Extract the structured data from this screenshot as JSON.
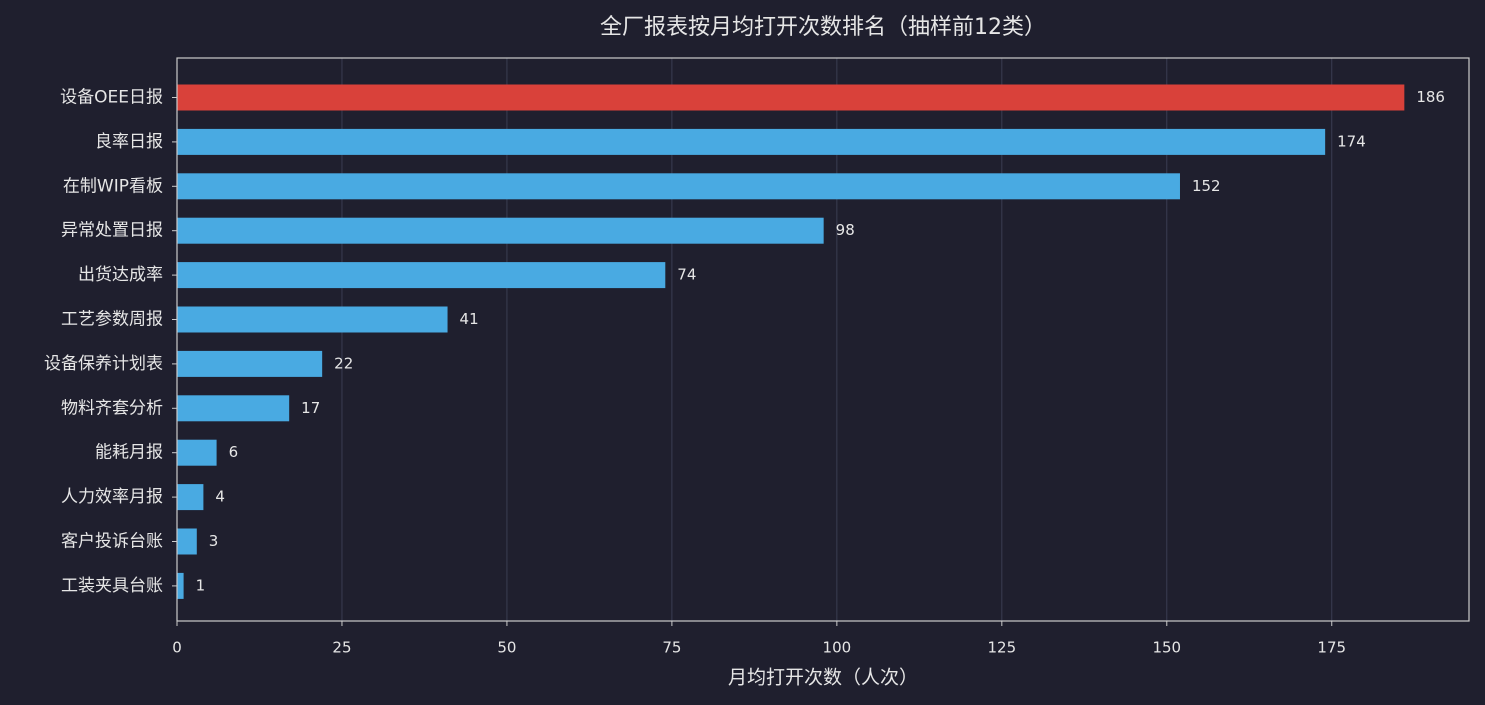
{
  "chart_data": {
    "type": "barh",
    "title": "全厂报表按月均打开次数排名（抽样前12类）",
    "x_label": "月均打开次数（人次）",
    "categories": [
      "设备OEE日报",
      "良率日报",
      "在制WIP看板",
      "异常处置日报",
      "出货达成率",
      "工艺参数周报",
      "设备保养计划表",
      "物料齐套分析",
      "能耗月报",
      "人力效率月报",
      "客户投诉台账",
      "工装夹具台账"
    ],
    "values": [
      186,
      174,
      152,
      98,
      74,
      41,
      22,
      17,
      6,
      4,
      3,
      1
    ],
    "colors": [
      "#d9413a",
      "#49aae2",
      "#49aae2",
      "#49aae2",
      "#49aae2",
      "#49aae2",
      "#49aae2",
      "#49aae2",
      "#49aae2",
      "#49aae2",
      "#49aae2",
      "#49aae2"
    ],
    "xlim": [
      0,
      195.8
    ],
    "xticks": [
      0,
      25,
      50,
      75,
      100,
      125,
      150,
      175
    ],
    "grid": true
  }
}
